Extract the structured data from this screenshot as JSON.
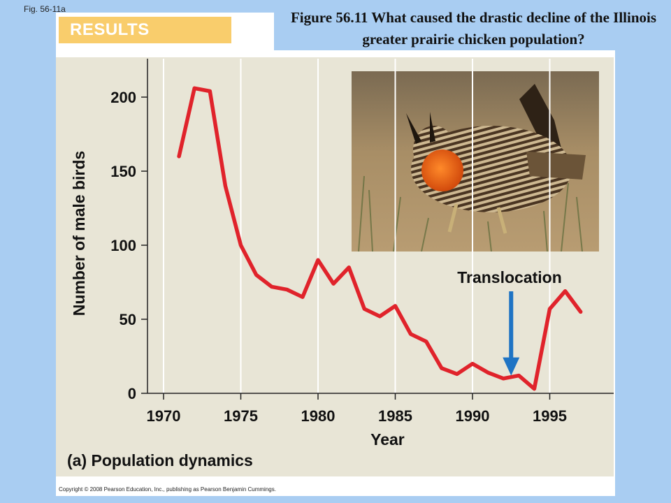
{
  "fig_label": "Fig. 56-11a",
  "results_label": "RESULTS",
  "heading": "Figure 56.11 What caused the drastic decline of the Illinois greater prairie chicken population?",
  "annotation": "Translocation",
  "subcaption": "(a) Population dynamics",
  "copyright": "Copyright © 2008 Pearson Education, Inc., publishing as Pearson Benjamin Cummings.",
  "photo_icon": "greater-prairie-chicken-photo",
  "colors": {
    "background": "#a9cdf2",
    "line": "#e0232b",
    "arrow": "#1f74c4",
    "results": "#f9cd6c"
  },
  "chart_data": {
    "type": "line",
    "title": "",
    "xlabel": "Year",
    "ylabel": "Number of male birds",
    "xlim": [
      1969,
      1998
    ],
    "ylim": [
      0,
      220
    ],
    "xticks": [
      1970,
      1975,
      1980,
      1985,
      1990,
      1995
    ],
    "yticks": [
      0,
      50,
      100,
      150,
      200
    ],
    "grid": "vertical",
    "annotations": [
      {
        "text": "Translocation",
        "x": 1992.5,
        "arrow_to_y": 11
      }
    ],
    "series": [
      {
        "x": [
          1971,
          1972,
          1973,
          1974,
          1975,
          1976,
          1977,
          1978,
          1979,
          1980,
          1981,
          1982,
          1983,
          1984,
          1985,
          1986,
          1987,
          1988,
          1989,
          1990,
          1991,
          1992,
          1993,
          1994,
          1995,
          1996,
          1997
        ],
        "values": [
          160,
          206,
          204,
          140,
          100,
          80,
          72,
          70,
          65,
          90,
          74,
          85,
          57,
          52,
          59,
          40,
          35,
          17,
          13,
          20,
          14,
          10,
          12,
          3,
          57,
          69,
          55
        ]
      }
    ]
  }
}
